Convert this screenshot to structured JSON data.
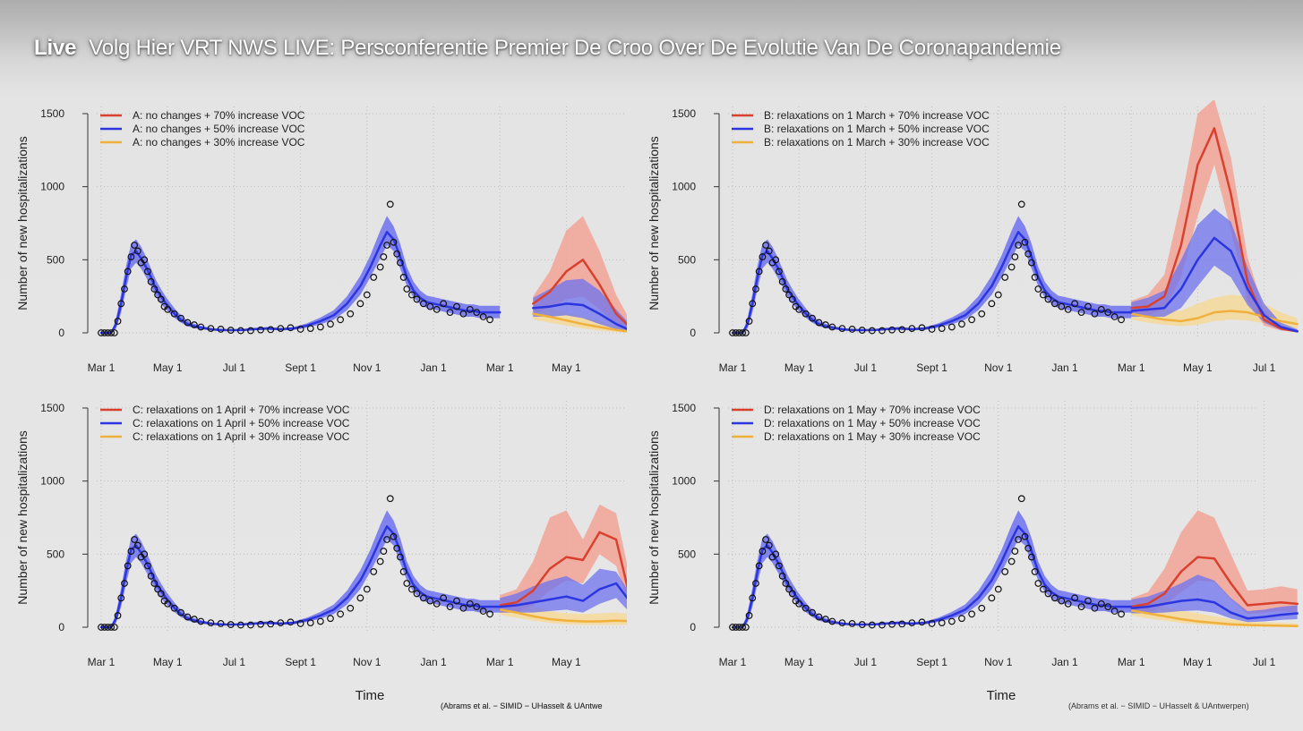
{
  "header": {
    "live_label": "Live",
    "title": "Volg Hier VRT NWS LIVE: Persconferentie Premier De Croo Over De Evolutie Van De Coronapandemie"
  },
  "colors": {
    "red": "#d9402e",
    "blue": "#2b36e0",
    "orange": "#f0b03c",
    "red_band": "#f2a497",
    "blue_band": "#6e72ee",
    "orange_band": "#f6d99a"
  },
  "chart_data": [
    {
      "type": "line",
      "panel": "A",
      "ylabel": "Number of new hospitalizations",
      "xlabel": "",
      "ylim": [
        0,
        1500
      ],
      "yticks": [
        0,
        500,
        1000,
        1500
      ],
      "xticks": [
        "Mar 1",
        "May 1",
        "Jul 1",
        "Sept 1",
        "Nov 1",
        "Jan 1",
        "Mar 1",
        "May 1"
      ],
      "legend": [
        "A: no changes + 70% increase VOC",
        "A: no changes + 50% increase VOC",
        "A: no changes + 30% increase VOC"
      ],
      "legend_position": "top-left",
      "grid": true,
      "series": [
        {
          "name": "A: no changes + 70% increase VOC",
          "color": "red",
          "x": [
            13.0,
            13.5,
            14.0,
            14.5,
            15.0,
            15.5,
            16.0
          ],
          "values": [
            200,
            280,
            420,
            500,
            330,
            130,
            20
          ],
          "band_low": [
            130,
            170,
            230,
            250,
            160,
            60,
            5
          ],
          "band_high": [
            250,
            420,
            700,
            800,
            560,
            260,
            50
          ]
        },
        {
          "name": "A: no changes + 50% increase VOC",
          "color": "blue",
          "x": [
            13.0,
            13.5,
            14.0,
            14.5,
            15.0,
            15.5,
            16.0
          ],
          "values": [
            170,
            180,
            200,
            190,
            130,
            60,
            10
          ],
          "band_low": [
            110,
            110,
            120,
            100,
            60,
            25,
            3
          ],
          "band_high": [
            240,
            300,
            360,
            370,
            290,
            160,
            40
          ]
        },
        {
          "name": "A: no changes + 30% increase VOC",
          "color": "orange",
          "x": [
            13.0,
            13.5,
            14.0,
            14.5,
            15.0,
            15.5,
            16.0
          ],
          "values": [
            130,
            110,
            85,
            60,
            40,
            20,
            5
          ],
          "band_low": [
            90,
            70,
            50,
            30,
            15,
            6,
            1
          ],
          "band_high": [
            190,
            170,
            140,
            110,
            80,
            45,
            15
          ]
        }
      ],
      "source": "(Abrams et al. − SIMID − UHasselt & UAntwe"
    },
    {
      "type": "line",
      "panel": "B",
      "ylabel": "Number of new hospitalizations",
      "xlabel": "",
      "ylim": [
        0,
        1500
      ],
      "yticks": [
        0,
        500,
        1000,
        1500
      ],
      "xticks": [
        "Mar 1",
        "May 1",
        "Jul 1",
        "Sept 1",
        "Nov 1",
        "Jan 1",
        "Mar 1",
        "May 1",
        "Jul 1"
      ],
      "legend": [
        "B: relaxations on 1 March + 70% increase VOC",
        "B: relaxations on 1 March + 50% increase VOC",
        "B: relaxations on 1 March + 30% increase VOC"
      ],
      "legend_position": "top-left",
      "grid": true,
      "series": [
        {
          "name": "B: relaxations on 1 March + 70% increase VOC",
          "color": "red",
          "x": [
            12.0,
            12.5,
            13.0,
            13.5,
            14.0,
            14.5,
            15.0,
            15.5,
            16.0,
            16.5,
            17.0
          ],
          "values": [
            170,
            180,
            250,
            600,
            1150,
            1400,
            950,
            350,
            90,
            30,
            10
          ],
          "band_low": [
            120,
            120,
            160,
            380,
            800,
            1150,
            700,
            220,
            50,
            15,
            5
          ],
          "band_high": [
            220,
            260,
            400,
            900,
            1500,
            1600,
            1200,
            520,
            150,
            50,
            20
          ]
        },
        {
          "name": "B: relaxations on 1 March + 50% increase VOC",
          "color": "blue",
          "x": [
            12.0,
            12.5,
            13.0,
            13.5,
            14.0,
            14.5,
            15.0,
            15.5,
            16.0,
            16.5,
            17.0
          ],
          "values": [
            150,
            160,
            170,
            300,
            500,
            650,
            560,
            300,
            120,
            40,
            10
          ],
          "band_low": [
            110,
            110,
            110,
            170,
            320,
            460,
            380,
            190,
            70,
            20,
            4
          ],
          "band_high": [
            210,
            240,
            290,
            500,
            740,
            850,
            760,
            450,
            200,
            70,
            25
          ]
        },
        {
          "name": "B: relaxations on 1 March + 30% increase VOC",
          "color": "orange",
          "x": [
            12.0,
            12.5,
            13.0,
            13.5,
            14.0,
            14.5,
            15.0,
            15.5,
            16.0,
            16.5,
            17.0
          ],
          "values": [
            130,
            110,
            90,
            80,
            100,
            140,
            150,
            140,
            110,
            80,
            60
          ],
          "band_low": [
            90,
            70,
            55,
            45,
            55,
            80,
            90,
            85,
            65,
            45,
            30
          ],
          "band_high": [
            200,
            180,
            160,
            150,
            200,
            240,
            260,
            250,
            200,
            140,
            100
          ]
        }
      ],
      "source": ""
    },
    {
      "type": "line",
      "panel": "C",
      "ylabel": "Number of new hospitalizations",
      "xlabel": "Time",
      "ylim": [
        0,
        1500
      ],
      "yticks": [
        0,
        500,
        1000,
        1500
      ],
      "xticks": [
        "Mar 1",
        "May 1",
        "Jul 1",
        "Sept 1",
        "Nov 1",
        "Jan 1",
        "Mar 1",
        "May 1"
      ],
      "legend": [
        "C: relaxations on 1 April + 70% increase VOC",
        "C: relaxations on 1 April + 50% increase VOC",
        "C: relaxations on 1 April + 30% increase VOC"
      ],
      "legend_position": "top-left",
      "grid": true,
      "series": [
        {
          "name": "C: relaxations on 1 April + 70% increase VOC",
          "color": "red",
          "x": [
            12.0,
            12.5,
            13.0,
            13.5,
            14.0,
            14.5,
            15.0,
            15.5,
            16.0
          ],
          "values": [
            150,
            170,
            250,
            400,
            480,
            460,
            650,
            600,
            120
          ],
          "band_low": [
            100,
            100,
            150,
            250,
            320,
            300,
            500,
            420,
            60
          ],
          "band_high": [
            220,
            260,
            450,
            750,
            800,
            600,
            840,
            780,
            250
          ]
        },
        {
          "name": "C: relaxations on 1 April + 50% increase VOC",
          "color": "blue",
          "x": [
            12.0,
            12.5,
            13.0,
            13.5,
            14.0,
            14.5,
            15.0,
            15.5,
            16.0
          ],
          "values": [
            140,
            150,
            170,
            190,
            210,
            180,
            260,
            300,
            150
          ],
          "band_low": [
            100,
            100,
            100,
            110,
            120,
            100,
            160,
            200,
            80
          ],
          "band_high": [
            200,
            230,
            280,
            320,
            350,
            290,
            400,
            380,
            200
          ]
        },
        {
          "name": "C: relaxations on 1 April + 30% increase VOC",
          "color": "orange",
          "x": [
            12.0,
            12.5,
            13.0,
            13.5,
            14.0,
            14.5,
            15.0,
            15.5,
            16.0
          ],
          "values": [
            120,
            100,
            75,
            55,
            45,
            40,
            40,
            45,
            40
          ],
          "band_low": [
            85,
            65,
            45,
            30,
            20,
            15,
            15,
            15,
            15
          ],
          "band_high": [
            190,
            170,
            140,
            110,
            95,
            90,
            95,
            100,
            90
          ]
        }
      ],
      "source": "(Abrams et al. − SIMID − UHasselt & UAntwe"
    },
    {
      "type": "line",
      "panel": "D",
      "ylabel": "Number of new hospitalizations",
      "xlabel": "Time",
      "ylim": [
        0,
        1500
      ],
      "yticks": [
        0,
        500,
        1000,
        1500
      ],
      "xticks": [
        "Mar 1",
        "May 1",
        "Jul 1",
        "Sept 1",
        "Nov 1",
        "Jan 1",
        "Mar 1",
        "May 1",
        "Jul 1"
      ],
      "legend": [
        "D: relaxations on 1 May + 70% increase VOC",
        "D: relaxations on 1 May + 50% increase VOC",
        "D: relaxations on 1 May + 30% increase VOC"
      ],
      "legend_position": "top-left",
      "grid": true,
      "series": [
        {
          "name": "D: relaxations on 1 May + 70% increase VOC",
          "color": "red",
          "x": [
            12.0,
            12.5,
            13.0,
            13.5,
            14.0,
            14.5,
            15.0,
            15.5,
            16.0,
            16.5,
            17.0
          ],
          "values": [
            140,
            160,
            230,
            380,
            480,
            470,
            300,
            150,
            160,
            170,
            160
          ],
          "band_low": [
            100,
            100,
            150,
            240,
            320,
            310,
            190,
            90,
            100,
            110,
            100
          ],
          "band_high": [
            200,
            240,
            400,
            650,
            800,
            750,
            500,
            250,
            260,
            280,
            260
          ]
        },
        {
          "name": "D: relaxations on 1 May + 50% increase VOC",
          "color": "blue",
          "x": [
            12.0,
            12.5,
            13.0,
            13.5,
            14.0,
            14.5,
            15.0,
            15.5,
            16.0,
            16.5,
            17.0
          ],
          "values": [
            130,
            140,
            160,
            180,
            190,
            170,
            100,
            60,
            70,
            85,
            95
          ],
          "band_low": [
            95,
            95,
            100,
            110,
            115,
            100,
            60,
            35,
            40,
            50,
            55
          ],
          "band_high": [
            190,
            210,
            250,
            300,
            360,
            320,
            200,
            110,
            120,
            140,
            150
          ]
        },
        {
          "name": "D: relaxations on 1 May + 30% increase VOC",
          "color": "orange",
          "x": [
            12.0,
            12.5,
            13.0,
            13.5,
            14.0,
            14.5,
            15.0,
            15.5,
            16.0,
            16.5,
            17.0
          ],
          "values": [
            115,
            95,
            75,
            55,
            40,
            30,
            20,
            15,
            12,
            10,
            8
          ],
          "band_low": [
            80,
            60,
            45,
            30,
            20,
            14,
            8,
            5,
            4,
            3,
            2
          ],
          "band_high": [
            180,
            160,
            140,
            115,
            95,
            75,
            55,
            40,
            35,
            30,
            25
          ]
        }
      ],
      "source": "(Abrams et al. − SIMID − UHasselt & UAntwerpen)"
    }
  ],
  "observed_model": {
    "color": "blue",
    "x": [
      0.0,
      0.3,
      0.45,
      0.6,
      0.75,
      0.9,
      1.05,
      1.2,
      1.35,
      1.5,
      1.65,
      1.8,
      1.95,
      2.1,
      2.25,
      2.4,
      2.6,
      2.8,
      3.0,
      3.2,
      3.4,
      3.6,
      3.8,
      4.0,
      4.3,
      4.6,
      5.0,
      5.4,
      5.8,
      6.2,
      6.6,
      7.0,
      7.4,
      7.8,
      8.1,
      8.4,
      8.6,
      8.8,
      9.0,
      9.2,
      9.4,
      9.6,
      9.8,
      10.0,
      10.2,
      10.4,
      10.6,
      10.8,
      11.0,
      11.2,
      11.4,
      11.6,
      11.8,
      12.0
    ],
    "values": [
      0,
      0,
      60,
      200,
      380,
      530,
      560,
      510,
      450,
      380,
      300,
      250,
      200,
      160,
      120,
      90,
      60,
      45,
      35,
      28,
      22,
      20,
      18,
      18,
      20,
      25,
      30,
      25,
      30,
      50,
      80,
      120,
      200,
      320,
      450,
      600,
      690,
      640,
      520,
      380,
      290,
      240,
      210,
      200,
      190,
      180,
      170,
      160,
      150,
      150,
      140,
      140,
      140,
      140
    ],
    "band_low": [
      0,
      0,
      30,
      140,
      300,
      440,
      480,
      440,
      380,
      320,
      250,
      200,
      160,
      125,
      95,
      70,
      45,
      33,
      25,
      20,
      15,
      13,
      12,
      12,
      13,
      17,
      21,
      17,
      21,
      36,
      58,
      90,
      155,
      260,
      380,
      510,
      600,
      560,
      440,
      320,
      240,
      195,
      170,
      160,
      150,
      140,
      130,
      120,
      110,
      110,
      100,
      100,
      100,
      100
    ],
    "band_high": [
      0,
      0,
      100,
      270,
      460,
      610,
      640,
      590,
      520,
      440,
      360,
      300,
      245,
      200,
      155,
      120,
      82,
      62,
      48,
      38,
      30,
      27,
      24,
      24,
      27,
      33,
      40,
      33,
      40,
      66,
      105,
      155,
      250,
      390,
      530,
      700,
      800,
      730,
      610,
      450,
      350,
      290,
      255,
      245,
      235,
      225,
      215,
      205,
      195,
      195,
      185,
      185,
      185,
      185
    ]
  },
  "observed_points": {
    "x": [
      0.0,
      0.1,
      0.2,
      0.3,
      0.4,
      0.5,
      0.6,
      0.7,
      0.8,
      0.9,
      1.0,
      1.1,
      1.2,
      1.3,
      1.4,
      1.5,
      1.6,
      1.7,
      1.8,
      1.9,
      2.0,
      2.2,
      2.4,
      2.6,
      2.8,
      3.0,
      3.3,
      3.6,
      3.9,
      4.2,
      4.5,
      4.8,
      5.1,
      5.4,
      5.7,
      6.0,
      6.3,
      6.6,
      6.9,
      7.2,
      7.5,
      7.8,
      8.0,
      8.2,
      8.4,
      8.5,
      8.6,
      8.7,
      8.8,
      8.9,
      9.0,
      9.1,
      9.2,
      9.35,
      9.5,
      9.7,
      9.9,
      10.1,
      10.3,
      10.5,
      10.7,
      10.9,
      11.1,
      11.3,
      11.5,
      11.7
    ],
    "values": [
      0,
      0,
      0,
      0,
      0,
      80,
      200,
      300,
      420,
      520,
      600,
      560,
      480,
      500,
      420,
      350,
      300,
      260,
      230,
      180,
      160,
      130,
      100,
      70,
      55,
      40,
      30,
      25,
      18,
      15,
      15,
      20,
      22,
      30,
      35,
      25,
      30,
      40,
      60,
      90,
      130,
      200,
      260,
      380,
      450,
      520,
      600,
      880,
      620,
      540,
      480,
      380,
      300,
      260,
      230,
      200,
      180,
      160,
      200,
      140,
      180,
      130,
      160,
      140,
      110,
      90
    ]
  }
}
